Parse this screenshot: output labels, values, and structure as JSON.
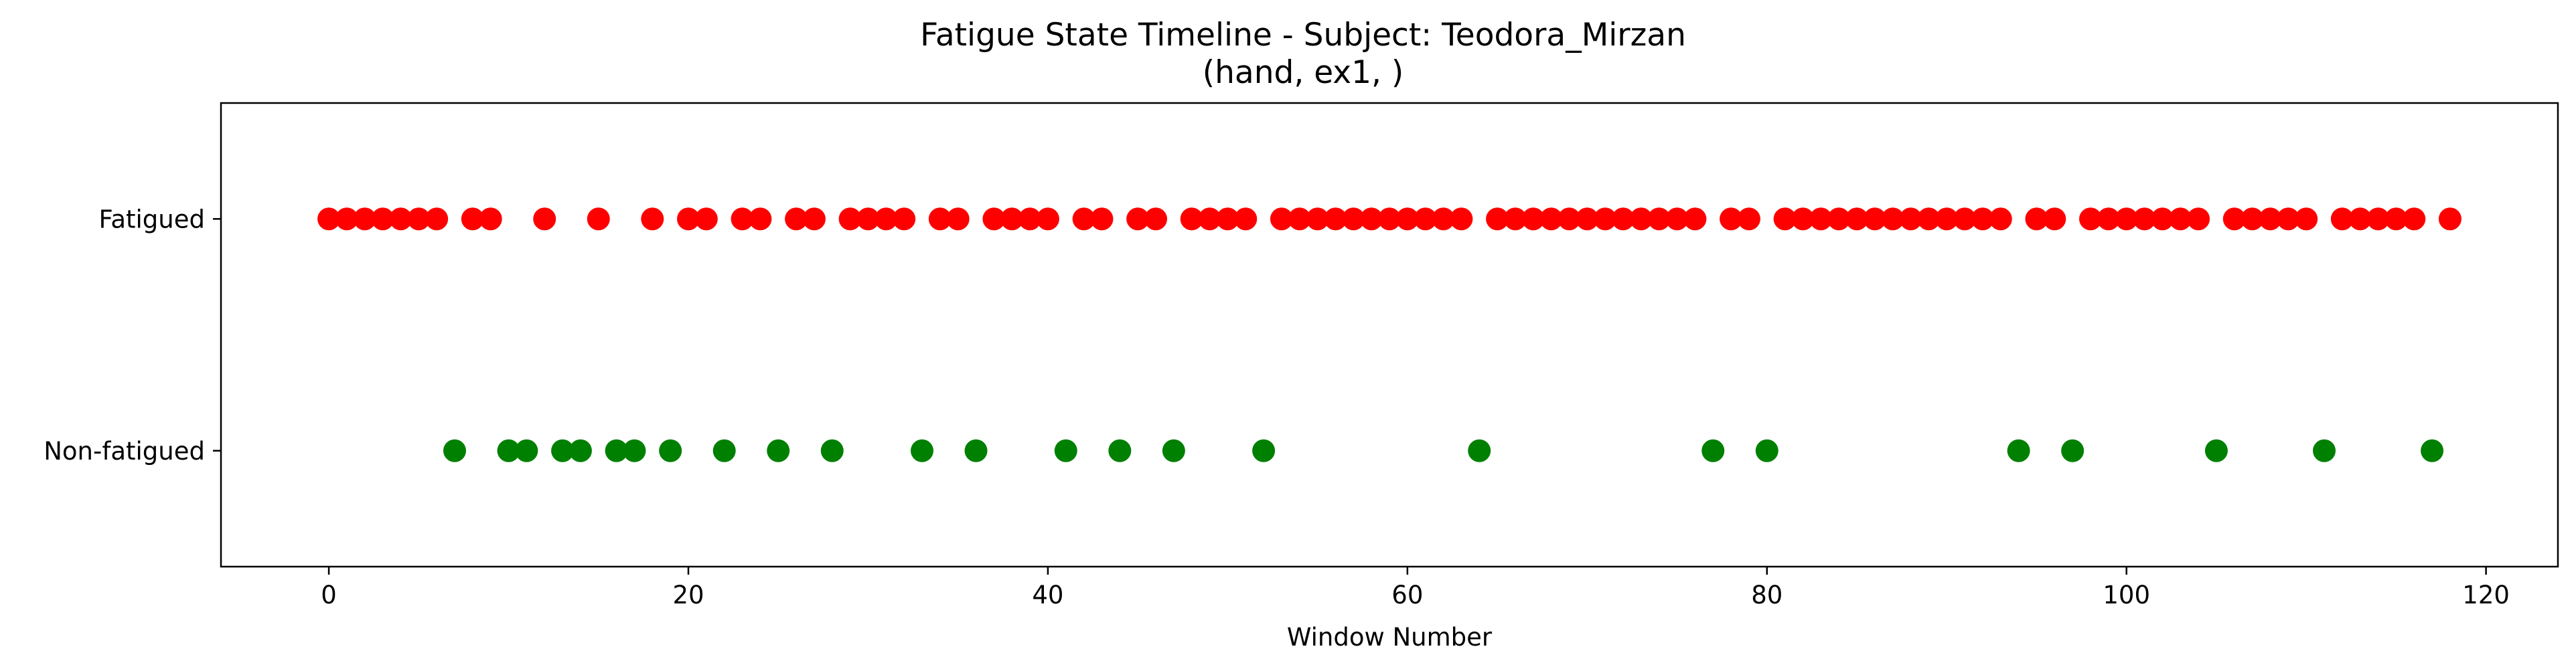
{
  "chart_data": {
    "type": "scatter",
    "title": "Fatigue State Timeline - Subject: Teodora_Mirzan",
    "subtitle": "(hand, ex1, )",
    "xlabel": "Window Number",
    "ylabel": "",
    "xlim": [
      -6,
      124
    ],
    "ylim": [
      -0.5,
      1.5
    ],
    "grid": false,
    "x_ticks": [
      0,
      20,
      40,
      60,
      80,
      100,
      120
    ],
    "y_categories": [
      "Non-fatigued",
      "Fatigued"
    ],
    "series": [
      {
        "state": "Fatigued",
        "color": "#ff0000",
        "y": 1,
        "x": [
          0,
          1,
          2,
          3,
          4,
          5,
          6,
          8,
          9,
          12,
          15,
          18,
          20,
          21,
          23,
          24,
          26,
          27,
          29,
          30,
          31,
          32,
          34,
          35,
          37,
          38,
          39,
          40,
          42,
          43,
          45,
          46,
          48,
          49,
          50,
          51,
          53,
          54,
          55,
          56,
          57,
          58,
          59,
          60,
          61,
          62,
          63,
          65,
          66,
          67,
          68,
          69,
          70,
          71,
          72,
          73,
          74,
          75,
          76,
          78,
          79,
          81,
          82,
          83,
          84,
          85,
          86,
          87,
          88,
          89,
          90,
          91,
          92,
          93,
          95,
          96,
          98,
          99,
          100,
          101,
          102,
          103,
          104,
          106,
          107,
          108,
          109,
          110,
          112,
          113,
          114,
          115,
          116,
          118
        ]
      },
      {
        "state": "Non-fatigued",
        "color": "#008000",
        "y": 0,
        "x": [
          7,
          10,
          11,
          13,
          14,
          16,
          17,
          19,
          22,
          25,
          28,
          33,
          36,
          41,
          44,
          47,
          52,
          64,
          77,
          80,
          94,
          97,
          105,
          111,
          117
        ]
      }
    ]
  }
}
